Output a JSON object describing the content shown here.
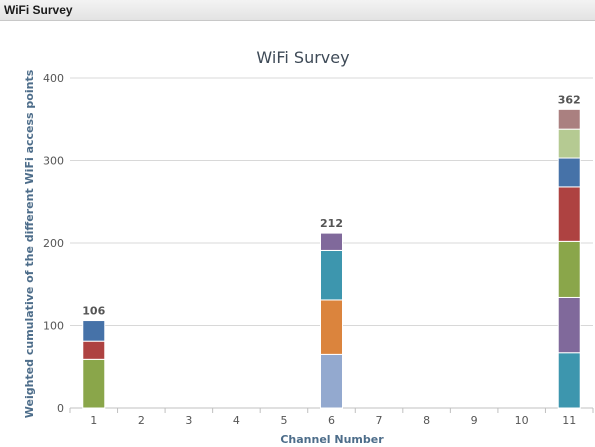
{
  "panel": {
    "title": "WiFi Survey"
  },
  "chart_data": {
    "type": "bar",
    "stacked": true,
    "title": "WiFi Survey",
    "xlabel": "Channel Number",
    "ylabel": "Weighted cumulative of the different WiFi access points",
    "categories": [
      "1",
      "2",
      "3",
      "4",
      "5",
      "6",
      "7",
      "8",
      "9",
      "10",
      "11"
    ],
    "ylim": [
      0,
      400
    ],
    "yticks": [
      0,
      100,
      200,
      300,
      400
    ],
    "grid": true,
    "legend": "none",
    "stacks": [
      {
        "category": "1",
        "total": 106,
        "segments": [
          {
            "value": 59,
            "color": "#8aa64a"
          },
          {
            "value": 22,
            "color": "#ae4241"
          },
          {
            "value": 25,
            "color": "#4672a8"
          }
        ]
      },
      {
        "category": "6",
        "total": 212,
        "segments": [
          {
            "value": 65,
            "color": "#93a9cf"
          },
          {
            "value": 66,
            "color": "#db843d"
          },
          {
            "value": 60,
            "color": "#3d96ae"
          },
          {
            "value": 21,
            "color": "#80699b"
          }
        ]
      },
      {
        "category": "11",
        "total": 362,
        "segments": [
          {
            "value": 67,
            "color": "#3d96ae"
          },
          {
            "value": 67,
            "color": "#80699b"
          },
          {
            "value": 68,
            "color": "#8aa64a"
          },
          {
            "value": 66,
            "color": "#ae4241"
          },
          {
            "value": 35,
            "color": "#4672a8"
          },
          {
            "value": 35,
            "color": "#b5ca92"
          },
          {
            "value": 24,
            "color": "#aa8080"
          }
        ]
      }
    ]
  }
}
